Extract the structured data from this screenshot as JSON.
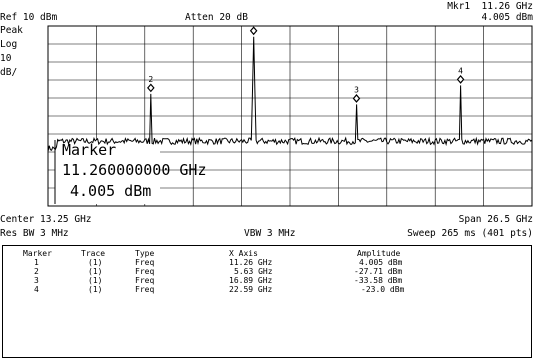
{
  "header": {
    "ref_level": "Ref 10 dBm",
    "attenuation": "Atten 20 dB",
    "marker_readout_label": "Mkr1  11.26 GHz",
    "marker_readout_value": "4.005 dBm"
  },
  "side_labels": {
    "detector": "Peak",
    "scale_type": "Log",
    "scale_value": "10",
    "scale_unit": "dB/"
  },
  "marker_box": {
    "title": "Marker",
    "frequency": "11.260000000 GHz",
    "amplitude": "4.005 dBm"
  },
  "footer": {
    "center": "Center 13.25 GHz",
    "span": "Span 26.5 GHz",
    "res_bw": "Res BW 3 MHz",
    "vbw": "VBW 3 MHz",
    "sweep": "Sweep 265 ms (401 pts)"
  },
  "marker_table": {
    "headers": [
      "Marker",
      "Trace",
      "Type",
      "X Axis",
      "Amplitude"
    ],
    "rows": [
      [
        "1",
        "(1)",
        "Freq",
        "11.26 GHz",
        "4.005 dBm"
      ],
      [
        "2",
        "(1)",
        "Freq",
        "5.63 GHz",
        "-27.71 dBm"
      ],
      [
        "3",
        "(1)",
        "Freq",
        "16.89 GHz",
        "-33.58 dBm"
      ],
      [
        "4",
        "(1)",
        "Freq",
        "22.59 GHz",
        "-23.0 dBm"
      ]
    ]
  },
  "chart_data": {
    "type": "line",
    "x_unit": "GHz",
    "y_unit": "dBm",
    "xlim": [
      0,
      26.5
    ],
    "ylim": [
      -90,
      10
    ],
    "grid": true,
    "noise_floor_dbm": -54,
    "peaks": [
      {
        "marker": "1",
        "x": 11.26,
        "y": 4.005
      },
      {
        "marker": "2",
        "x": 5.63,
        "y": -27.71
      },
      {
        "marker": "3",
        "x": 16.89,
        "y": -33.58
      },
      {
        "marker": "4",
        "x": 22.59,
        "y": -23.0
      }
    ]
  }
}
